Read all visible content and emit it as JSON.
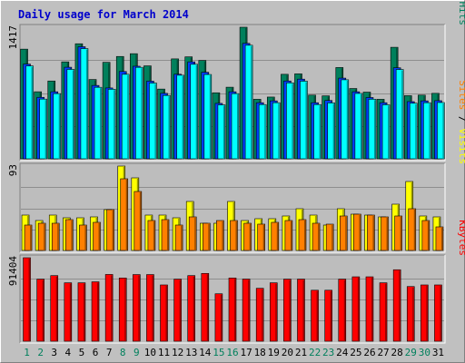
{
  "colors": {
    "background": "#c0c0c0",
    "panel": "#bdbdbd",
    "title": "#0000cc",
    "hits": "#00805c",
    "files": "#0040ff",
    "pages": "#00ffff",
    "visits": "#ffff00",
    "sites": "#ff8000",
    "kbytes": "#ff0000",
    "weekend_label": "#00805c",
    "weekday_label": "#000000"
  },
  "chart_data": {
    "type": "bar",
    "title": "Daily usage for March 2014",
    "categories": [
      "1",
      "2",
      "3",
      "4",
      "5",
      "6",
      "7",
      "8",
      "9",
      "10",
      "11",
      "12",
      "13",
      "14",
      "15",
      "16",
      "17",
      "18",
      "19",
      "20",
      "21",
      "22",
      "23",
      "24",
      "25",
      "26",
      "27",
      "28",
      "29",
      "30",
      "31"
    ],
    "weekend_days": [
      "1",
      "2",
      "8",
      "9",
      "15",
      "16",
      "22",
      "23",
      "29",
      "30"
    ],
    "panels": [
      {
        "name": "pages-files-hits",
        "y_max_label": "1417",
        "y_max": 1417,
        "legend": [
          {
            "text": "Pages",
            "color": "#00ffff"
          },
          {
            "text": " / ",
            "color": "#000000"
          },
          {
            "text": "Files",
            "color": "#0040ff"
          },
          {
            "text": " / ",
            "color": "#000000"
          },
          {
            "text": "Hits",
            "color": "#00805c"
          }
        ],
        "series": [
          {
            "name": "Hits",
            "color": "#00805c",
            "values": [
              1181,
              722,
              838,
              1044,
              1239,
              854,
              1039,
              1102,
              1132,
              1001,
              751,
              1076,
              1098,
              1059,
              711,
              771,
              1417,
              641,
              665,
              910,
              915,
              686,
              678,
              983,
              757,
              718,
              641,
              1201,
              680,
              686,
              705
            ]
          },
          {
            "name": "Files",
            "color": "#0040ff",
            "values": [
              1020,
              662,
              722,
              986,
              1207,
              790,
              763,
              940,
              997,
              836,
              705,
              911,
              1044,
              932,
              597,
              722,
              1243,
              604,
              624,
              838,
              858,
              604,
              628,
              869,
              722,
              660,
              604,
              980,
              616,
              624,
              626
            ]
          },
          {
            "name": "Pages",
            "color": "#00ffff",
            "values": [
              1000,
              643,
              702,
              963,
              1187,
              770,
              749,
              910,
              985,
              816,
              682,
              900,
              1018,
              908,
              581,
              702,
              1223,
              584,
              604,
              818,
              836,
              584,
              602,
              851,
              704,
              642,
              582,
              962,
              599,
              604,
              606
            ]
          }
        ]
      },
      {
        "name": "sites-visits",
        "y_max_label": "93",
        "y_max": 93,
        "legend": [
          {
            "text": "Sites",
            "color": "#ff8000"
          },
          {
            "text": " / ",
            "color": "#000000"
          },
          {
            "text": "Visits",
            "color": "#ffff00"
          }
        ],
        "series": [
          {
            "name": "Visits",
            "color": "#ffff00",
            "values": [
              39,
              33,
              39,
              36,
              36,
              37,
              45,
              93,
              80,
              39,
              39,
              36,
              54,
              30,
              30,
              54,
              33,
              35,
              35,
              38,
              46,
              39,
              28,
              46,
              40,
              39,
              37,
              51,
              76,
              38,
              37
            ]
          },
          {
            "name": "Sites",
            "color": "#ff8000",
            "values": [
              28,
              30,
              30,
              34,
              28,
              31,
              45,
              79,
              65,
              33,
              34,
              28,
              37,
              30,
              33,
              33,
              30,
              29,
              31,
              33,
              34,
              30,
              29,
              38,
              40,
              39,
              37,
              38,
              46,
              33,
              26
            ]
          }
        ]
      },
      {
        "name": "kbytes",
        "y_max_label": "91404",
        "y_max": 91404,
        "legend": [
          {
            "text": "KBytes",
            "color": "#ff0000"
          }
        ],
        "series": [
          {
            "name": "KBytes",
            "color": "#ff0000",
            "values": [
              91404,
              67948,
              71826,
              63957,
              63957,
              65022,
              73083,
              69204,
              72962,
              72962,
              61614,
              67948,
              71826,
              74232,
              51932,
              69204,
              68015,
              57935,
              63957,
              67948,
              67948,
              55814,
              55814,
              67948,
              70512,
              70512,
              63957,
              78246,
              59869,
              61614,
              61614
            ]
          }
        ]
      }
    ]
  }
}
